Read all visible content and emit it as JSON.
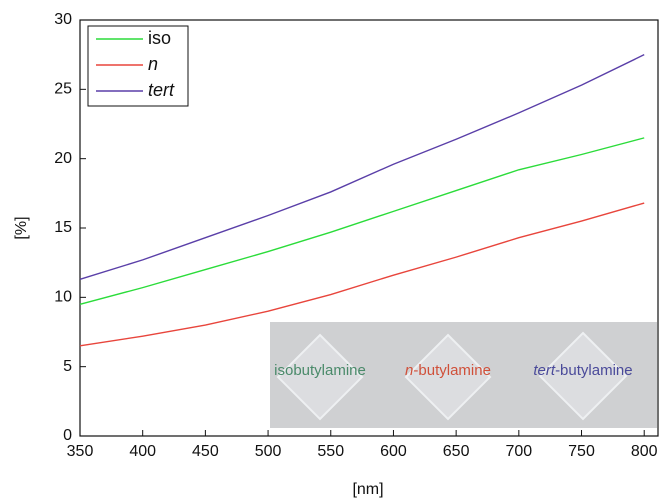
{
  "chart_data": {
    "type": "line",
    "x_label": "[nm]",
    "y_label": "[%]",
    "x": [
      350,
      400,
      450,
      500,
      550,
      600,
      650,
      700,
      750,
      800
    ],
    "series": [
      {
        "name": "iso",
        "color": "#2bdc3a",
        "style": "normal",
        "values": [
          9.5,
          10.7,
          12.0,
          13.3,
          14.7,
          16.2,
          17.7,
          19.2,
          20.3,
          21.5
        ]
      },
      {
        "name": "n",
        "color": "#e8453c",
        "style": "italic",
        "values": [
          6.5,
          7.2,
          8.0,
          9.0,
          10.2,
          11.6,
          12.9,
          14.3,
          15.5,
          16.8
        ]
      },
      {
        "name": "tert",
        "color": "#5a3fa8",
        "style": "italic",
        "values": [
          11.3,
          12.7,
          14.3,
          15.9,
          17.6,
          19.6,
          21.4,
          23.3,
          25.3,
          27.5
        ]
      }
    ],
    "xlim": [
      350,
      811
    ],
    "ylim": [
      0,
      30
    ],
    "xticks": [
      350,
      400,
      450,
      500,
      550,
      600,
      650,
      700,
      750,
      800
    ],
    "yticks": [
      0,
      5,
      10,
      15,
      20,
      25,
      30
    ],
    "legend": "top-left",
    "inset_labels": [
      {
        "prefix": "",
        "text": "isobutylamine",
        "color": "#4a8a6a"
      },
      {
        "prefix": "n",
        "text": "-butylamine",
        "color": "#d0503a"
      },
      {
        "prefix": "tert",
        "text": "-butylamine",
        "color": "#4a4a9a"
      }
    ]
  }
}
